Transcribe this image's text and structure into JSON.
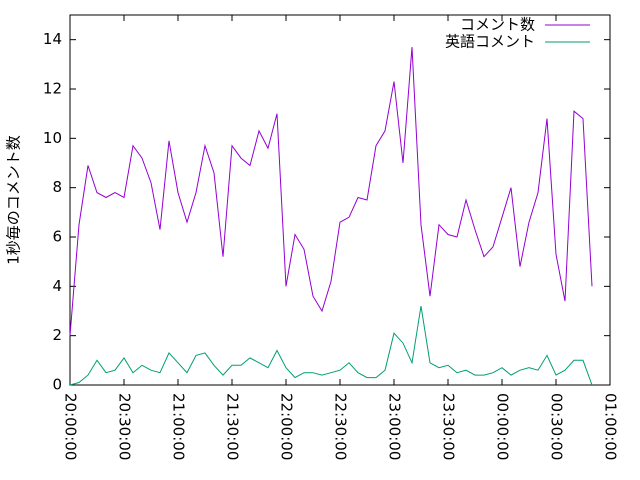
{
  "chart_data": {
    "type": "line",
    "y_label": "1秒毎のコメント数",
    "x": [
      "20:00:00",
      "20:05:00",
      "20:10:00",
      "20:15:00",
      "20:20:00",
      "20:25:00",
      "20:30:00",
      "20:35:00",
      "20:40:00",
      "20:45:00",
      "20:50:00",
      "20:55:00",
      "21:00:00",
      "21:05:00",
      "21:10:00",
      "21:15:00",
      "21:20:00",
      "21:25:00",
      "21:30:00",
      "21:35:00",
      "21:40:00",
      "21:45:00",
      "21:50:00",
      "21:55:00",
      "22:00:00",
      "22:05:00",
      "22:10:00",
      "22:15:00",
      "22:20:00",
      "22:25:00",
      "22:30:00",
      "22:35:00",
      "22:40:00",
      "22:45:00",
      "22:50:00",
      "22:55:00",
      "23:00:00",
      "23:05:00",
      "23:10:00",
      "23:15:00",
      "23:20:00",
      "23:25:00",
      "23:30:00",
      "23:35:00",
      "23:40:00",
      "23:45:00",
      "23:50:00",
      "23:55:00",
      "00:00:00",
      "00:05:00",
      "00:10:00",
      "00:15:00",
      "00:20:00",
      "00:25:00",
      "00:30:00",
      "00:35:00",
      "00:40:00",
      "00:45:00",
      "00:50:00"
    ],
    "series": [
      {
        "name": "コメント数",
        "color": "#9400d3",
        "values": [
          2.0,
          6.5,
          8.9,
          7.8,
          7.6,
          7.8,
          7.6,
          9.7,
          9.2,
          8.2,
          6.3,
          9.9,
          7.8,
          6.6,
          7.8,
          9.7,
          8.6,
          5.2,
          9.7,
          9.2,
          8.9,
          10.3,
          9.6,
          11.0,
          4.0,
          6.1,
          5.5,
          3.6,
          3.0,
          4.2,
          6.6,
          6.8,
          7.6,
          7.5,
          9.7,
          10.3,
          12.3,
          9.0,
          13.7,
          6.5,
          3.6,
          6.5,
          6.1,
          6.0,
          7.5,
          6.3,
          5.2,
          5.6,
          6.8,
          8.0,
          4.8,
          6.6,
          7.8,
          10.8,
          5.3,
          3.4,
          11.1,
          10.8,
          4.0
        ]
      },
      {
        "name": "英語コメント",
        "color": "#009e73",
        "values": [
          0.0,
          0.1,
          0.4,
          1.0,
          0.5,
          0.6,
          1.1,
          0.5,
          0.8,
          0.6,
          0.5,
          1.3,
          0.9,
          0.5,
          1.2,
          1.3,
          0.8,
          0.4,
          0.8,
          0.8,
          1.1,
          0.9,
          0.7,
          1.4,
          0.7,
          0.3,
          0.5,
          0.5,
          0.4,
          0.5,
          0.6,
          0.9,
          0.5,
          0.3,
          0.3,
          0.6,
          2.1,
          1.7,
          0.9,
          3.2,
          0.9,
          0.7,
          0.8,
          0.5,
          0.6,
          0.4,
          0.4,
          0.5,
          0.7,
          0.4,
          0.6,
          0.7,
          0.6,
          1.2,
          0.4,
          0.6,
          1.0,
          1.0,
          0.0
        ]
      }
    ],
    "xlim": [
      "20:00:00",
      "01:00:00"
    ],
    "xticks": [
      "20:00:00",
      "20:30:00",
      "21:00:00",
      "21:30:00",
      "22:00:00",
      "22:30:00",
      "23:00:00",
      "23:30:00",
      "00:00:00",
      "00:30:00",
      "01:00:00"
    ],
    "ylim": [
      0,
      15
    ],
    "yticks": [
      0,
      2,
      4,
      6,
      8,
      10,
      12,
      14
    ],
    "legend": "top-right"
  }
}
